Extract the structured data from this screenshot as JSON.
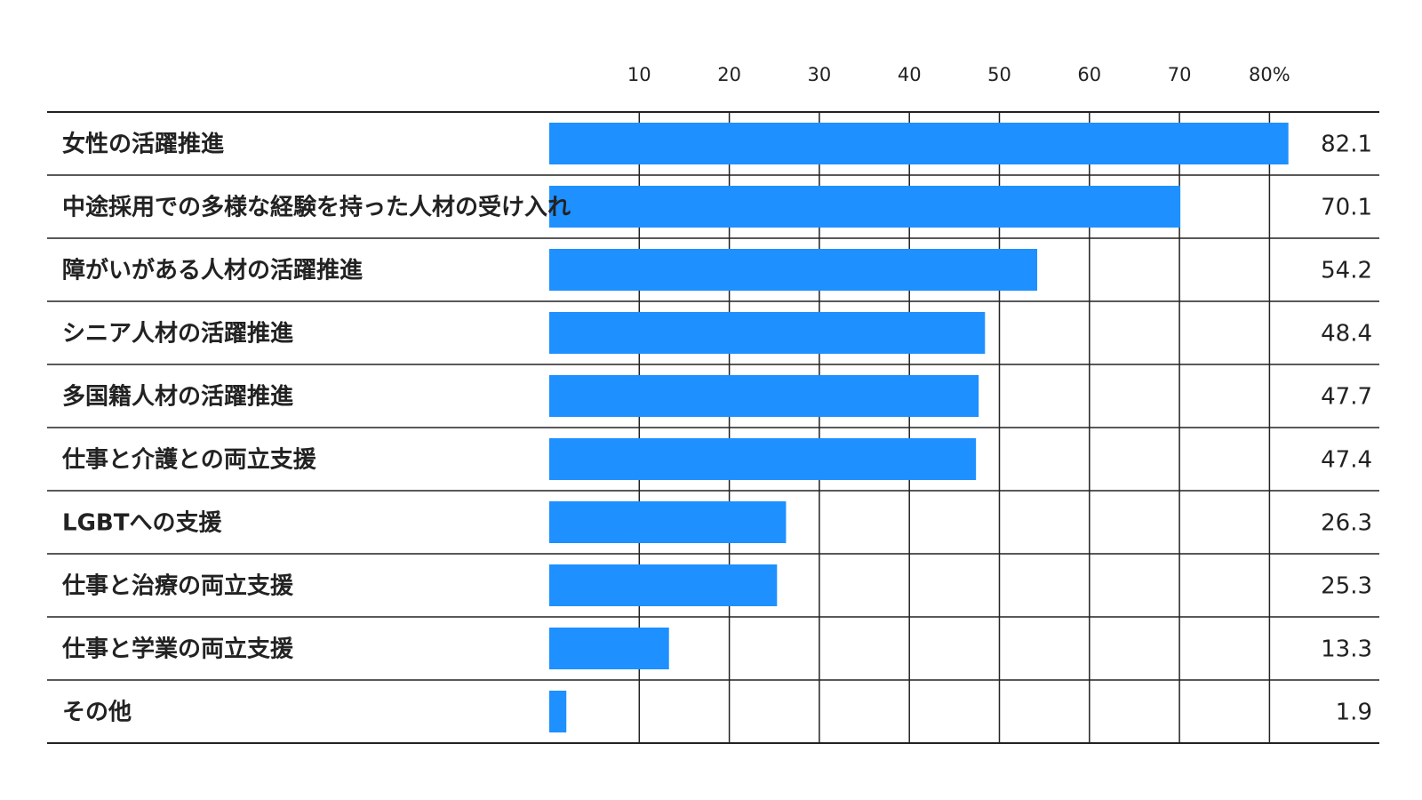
{
  "chart_data": {
    "type": "bar",
    "orientation": "horizontal",
    "categories": [
      "女性の活躍推進",
      "中途採用での多様な経験を持った人材の受け入れ",
      "障がいがある人材の活躍推進",
      "シニア人材の活躍推進",
      "多国籍人材の活躍推進",
      "仕事と介護との両立支援",
      "LGBTへの支援",
      "仕事と治療の両立支援",
      "仕事と学業の両立支援",
      "その他"
    ],
    "values": [
      82.1,
      70.1,
      54.2,
      48.4,
      47.7,
      47.4,
      26.3,
      25.3,
      13.3,
      1.9
    ],
    "value_labels": [
      "82.1",
      "70.1",
      "54.2",
      "48.4",
      "47.7",
      "47.4",
      "26.3",
      "25.3",
      "13.3",
      "1.9"
    ],
    "x_ticks": [
      10,
      20,
      30,
      40,
      50,
      60,
      70,
      80
    ],
    "x_tick_labels": [
      "10",
      "20",
      "30",
      "40",
      "50",
      "60",
      "70",
      "80%"
    ],
    "xlim": [
      0,
      80
    ],
    "grid": true,
    "bar_color": "#1e90ff",
    "title": "",
    "xlabel": "",
    "ylabel": ""
  }
}
